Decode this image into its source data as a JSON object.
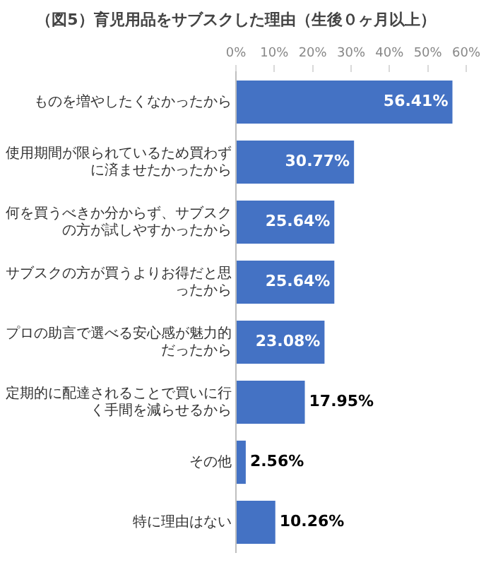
{
  "chart_data": {
    "type": "bar",
    "orientation": "horizontal",
    "title": "（図5）育児用品をサブスクした理由（生後０ヶ月以上）",
    "categories": [
      "ものを増やしたくなかったから",
      "使用期間が限られているため買わずに済ませたかったから",
      "何を買うべきか分からず、サブスクの方が試しやすかったから",
      "サブスクの方が買うよりお得だと思ったから",
      "プロの助言で選べる安心感が魅力的だったから",
      "定期的に配達されることで買いに行く手間を減らせるから",
      "その他",
      "特に理由はない"
    ],
    "values": [
      56.41,
      30.77,
      25.64,
      25.64,
      23.08,
      17.95,
      2.56,
      10.26
    ],
    "value_labels": [
      "56.41%",
      "30.77%",
      "25.64%",
      "25.64%",
      "23.08%",
      "17.95%",
      "2.56%",
      "10.26%"
    ],
    "color": "#4472c4",
    "xlim": [
      0,
      60
    ],
    "xticks": [
      {
        "value": 0,
        "label": "0%"
      },
      {
        "value": 10,
        "label": "10%"
      },
      {
        "value": 20,
        "label": "20%"
      },
      {
        "value": 30,
        "label": "30%"
      },
      {
        "value": 40,
        "label": "40%"
      },
      {
        "value": 50,
        "label": "50%"
      },
      {
        "value": 60,
        "label": "60%"
      }
    ],
    "grid": false,
    "legend": false
  }
}
